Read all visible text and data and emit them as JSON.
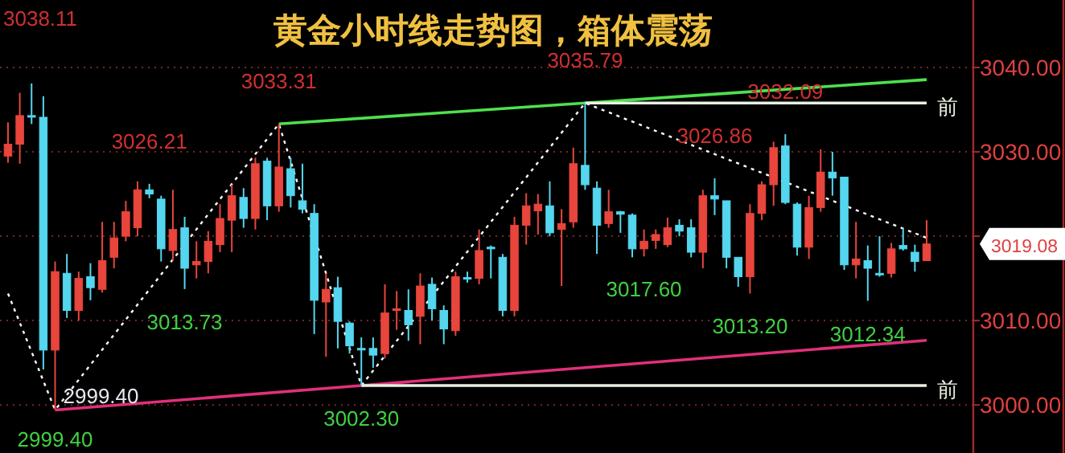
{
  "chart_data": {
    "type": "candlestick",
    "title": "黄金小时线走势图，箱体震荡",
    "categories": [
      null,
      null,
      null,
      null,
      null,
      null,
      null,
      null,
      null,
      null,
      null,
      null,
      null,
      null,
      null,
      null,
      null,
      null,
      null,
      null,
      null,
      null,
      null,
      null,
      null,
      null,
      null,
      null,
      null,
      null,
      null,
      null,
      null,
      null,
      null,
      null,
      null,
      null,
      null,
      null,
      null,
      null,
      null,
      null,
      null,
      null,
      null,
      null,
      null,
      null,
      null,
      null,
      null,
      null,
      null,
      null,
      null,
      null,
      null,
      null,
      null,
      null,
      null,
      null,
      null,
      null,
      null,
      null,
      null,
      null,
      null,
      null,
      null,
      null,
      null,
      null,
      null,
      null,
      null
    ],
    "ohlc": [
      [
        3029.5,
        3033.5,
        3028.7,
        3030.9
      ],
      [
        3030.9,
        3037.0,
        3028.6,
        3034.3
      ],
      [
        3034.3,
        3038.11,
        3033.3,
        3034.2
      ],
      [
        3034.1,
        3036.6,
        3004.2,
        3006.5
      ],
      [
        3006.5,
        3017.0,
        2999.4,
        3015.8
      ],
      [
        3015.6,
        3017.9,
        3010.3,
        3011.2
      ],
      [
        3011.2,
        3015.8,
        3010.0,
        3015.0
      ],
      [
        3015.2,
        3016.8,
        3012.4,
        3013.9
      ],
      [
        3013.7,
        3021.7,
        3013.3,
        3017.1
      ],
      [
        3017.5,
        3021.7,
        3016.2,
        3019.8
      ],
      [
        3020.0,
        3024.2,
        3019.4,
        3022.9
      ],
      [
        3021.0,
        3026.5,
        3020.0,
        3025.5
      ],
      [
        3025.5,
        3026.21,
        3024.5,
        3025.0
      ],
      [
        3024.4,
        3024.8,
        3017.0,
        3018.5
      ],
      [
        3018.3,
        3025.5,
        3017.1,
        3020.8
      ],
      [
        3021.0,
        3022.3,
        3013.73,
        3016.2
      ],
      [
        3016.6,
        3019.4,
        3015.0,
        3017.0
      ],
      [
        3017.0,
        3020.6,
        3015.6,
        3019.4
      ],
      [
        3019.0,
        3023.8,
        3018.1,
        3022.1
      ],
      [
        3021.9,
        3026.1,
        3018.1,
        3024.8
      ],
      [
        3024.6,
        3025.7,
        3021.0,
        3022.1
      ],
      [
        3022.1,
        3029.3,
        3020.8,
        3028.6
      ],
      [
        3028.9,
        3029.3,
        3021.9,
        3023.6
      ],
      [
        3023.6,
        3033.31,
        3022.9,
        3028.2
      ],
      [
        3028.0,
        3029.3,
        3023.4,
        3024.8
      ],
      [
        3024.2,
        3028.6,
        3022.7,
        3023.2
      ],
      [
        3022.7,
        3023.8,
        3008.4,
        3012.4
      ],
      [
        3012.2,
        3015.6,
        3005.7,
        3013.7
      ],
      [
        3013.9,
        3015.2,
        3006.7,
        3009.9
      ],
      [
        3009.7,
        3009.9,
        3006.1,
        3007.0
      ],
      [
        3006.7,
        3008.0,
        3002.3,
        3006.6
      ],
      [
        3006.7,
        3008.0,
        3004.4,
        3005.9
      ],
      [
        3006.1,
        3014.3,
        3005.5,
        3010.9
      ],
      [
        3011.2,
        3013.5,
        3008.9,
        3011.4
      ],
      [
        3011.2,
        3013.7,
        3007.6,
        3009.5
      ],
      [
        3010.5,
        3015.6,
        3007.2,
        3014.1
      ],
      [
        3014.3,
        3015.1,
        3010.0,
        3011.4
      ],
      [
        3011.2,
        3011.8,
        3007.2,
        3009.0
      ],
      [
        3008.8,
        3015.8,
        3008.2,
        3015.2
      ],
      [
        3015.0,
        3015.8,
        3014.5,
        3015.1
      ],
      [
        3015.0,
        3020.8,
        3014.3,
        3018.3
      ],
      [
        3018.7,
        3018.9,
        3015.0,
        3018.5
      ],
      [
        3017.5,
        3017.9,
        3010.5,
        3011.2
      ],
      [
        3011.2,
        3022.3,
        3010.5,
        3021.3
      ],
      [
        3021.3,
        3025.1,
        3019.0,
        3023.6
      ],
      [
        3023.0,
        3025.0,
        3020.2,
        3023.8
      ],
      [
        3023.6,
        3026.5,
        3020.0,
        3020.4
      ],
      [
        3020.8,
        3023.2,
        3014.1,
        3021.5
      ],
      [
        3021.7,
        3030.5,
        3021.0,
        3028.6
      ],
      [
        3028.4,
        3035.79,
        3025.5,
        3026.1
      ],
      [
        3025.7,
        3026.5,
        3017.9,
        3021.3
      ],
      [
        3021.5,
        3025.5,
        3021.0,
        3022.9
      ],
      [
        3022.9,
        3023.0,
        3020.4,
        3022.6
      ],
      [
        3022.5,
        3022.7,
        3017.5,
        3018.5
      ],
      [
        3018.5,
        3020.8,
        3017.6,
        3019.4
      ],
      [
        3019.5,
        3020.8,
        3018.5,
        3020.2
      ],
      [
        3019.0,
        3022.2,
        3018.7,
        3021.0
      ],
      [
        3021.3,
        3022.0,
        3020.0,
        3020.6
      ],
      [
        3021.0,
        3022.0,
        3017.5,
        3018.1
      ],
      [
        3018.1,
        3025.5,
        3016.2,
        3024.8
      ],
      [
        3024.8,
        3026.86,
        3022.5,
        3024.4
      ],
      [
        3024.2,
        3024.2,
        3016.2,
        3017.5
      ],
      [
        3017.5,
        3017.5,
        3014.0,
        3015.2
      ],
      [
        3015.2,
        3023.8,
        3013.2,
        3022.7
      ],
      [
        3022.7,
        3026.5,
        3021.9,
        3026.1
      ],
      [
        3026.1,
        3031.2,
        3023.6,
        3030.5
      ],
      [
        3030.7,
        3032.09,
        3023.8,
        3024.0
      ],
      [
        3023.8,
        3024.0,
        3017.7,
        3018.7
      ],
      [
        3018.7,
        3024.8,
        3017.3,
        3023.4
      ],
      [
        3023.4,
        3030.3,
        3022.9,
        3027.6
      ],
      [
        3027.6,
        3030.0,
        3024.8,
        3026.9
      ],
      [
        3027.0,
        3027.0,
        3016.0,
        3016.6
      ],
      [
        3016.6,
        3021.7,
        3015.0,
        3017.3
      ],
      [
        3017.1,
        3018.9,
        3012.34,
        3016.2
      ],
      [
        3015.6,
        3020.0,
        3015.2,
        3015.5
      ],
      [
        3015.6,
        3019.2,
        3015.1,
        3018.5
      ],
      [
        3018.9,
        3021.0,
        3018.3,
        3018.5
      ],
      [
        3018.1,
        3019.0,
        3015.8,
        3017.0
      ],
      [
        3017.1,
        3021.9,
        3017.1,
        3019.08
      ]
    ],
    "colors": [
      "#e8453c",
      "#e8453c",
      "#54d6ef",
      "#54d6ef",
      "#e8453c",
      "#54d6ef",
      "#e8453c",
      "#54d6ef",
      "#e8453c",
      "#e8453c",
      "#e8453c",
      "#e8453c",
      "#54d6ef",
      "#54d6ef",
      "#e8453c",
      "#54d6ef",
      "#e8453c",
      "#e8453c",
      "#e8453c",
      "#e8453c",
      "#54d6ef",
      "#e8453c",
      "#54d6ef",
      "#e8453c",
      "#54d6ef",
      "#54d6ef",
      "#54d6ef",
      "#e8453c",
      "#54d6ef",
      "#54d6ef",
      "#54d6ef",
      "#54d6ef",
      "#e8453c",
      "#e8453c",
      "#54d6ef",
      "#e8453c",
      "#54d6ef",
      "#54d6ef",
      "#e8453c",
      "#54d6ef",
      "#e8453c",
      "#54d6ef",
      "#54d6ef",
      "#e8453c",
      "#e8453c",
      "#e8453c",
      "#54d6ef",
      "#e8453c",
      "#e8453c",
      "#54d6ef",
      "#54d6ef",
      "#e8453c",
      "#54d6ef",
      "#54d6ef",
      "#e8453c",
      "#e8453c",
      "#e8453c",
      "#54d6ef",
      "#54d6ef",
      "#e8453c",
      "#54d6ef",
      "#54d6ef",
      "#54d6ef",
      "#e8453c",
      "#e8453c",
      "#e8453c",
      "#54d6ef",
      "#54d6ef",
      "#e8453c",
      "#e8453c",
      "#54d6ef",
      "#54d6ef",
      "#e8453c",
      "#54d6ef",
      "#54d6ef",
      "#e8453c",
      "#54d6ef",
      "#54d6ef",
      "#e8453c"
    ],
    "series": [
      {
        "type": "line",
        "color": "#4ee04e",
        "line_style": "solid",
        "values": [
          null,
          null,
          null,
          null,
          null,
          null,
          null,
          null,
          null,
          null,
          null,
          null,
          null,
          null,
          null,
          null,
          null,
          null,
          null,
          null,
          null,
          null,
          null,
          3033.31,
          null,
          null,
          null,
          null,
          null,
          null,
          null,
          null,
          null,
          null,
          null,
          null,
          null,
          null,
          null,
          null,
          null,
          null,
          null,
          null,
          null,
          null,
          null,
          null,
          null,
          3035.79,
          null,
          null,
          null,
          null,
          null,
          null,
          null,
          null,
          null,
          null,
          null,
          null,
          null,
          null,
          null,
          null,
          null,
          null,
          null,
          null,
          null,
          null,
          null,
          null,
          null,
          null,
          null,
          null,
          3038.56
        ]
      },
      {
        "type": "line",
        "color": "#e0307a",
        "line_style": "solid",
        "values": [
          null,
          null,
          null,
          null,
          2999.4,
          null,
          null,
          null,
          null,
          null,
          null,
          null,
          null,
          null,
          null,
          null,
          null,
          null,
          null,
          null,
          null,
          null,
          null,
          null,
          null,
          null,
          null,
          null,
          null,
          null,
          3002.3,
          null,
          null,
          null,
          null,
          null,
          null,
          null,
          null,
          null,
          null,
          null,
          null,
          null,
          null,
          null,
          null,
          null,
          null,
          null,
          null,
          null,
          null,
          null,
          null,
          null,
          null,
          null,
          null,
          null,
          null,
          null,
          null,
          null,
          null,
          null,
          null,
          null,
          null,
          null,
          null,
          null,
          null,
          null,
          null,
          null,
          null,
          null,
          3007.65
        ]
      },
      {
        "type": "line",
        "color": "#ffffff",
        "line_style": "dotted",
        "values": [
          3013.2,
          null,
          null,
          null,
          2999.4,
          null,
          null,
          null,
          null,
          null,
          null,
          null,
          null,
          null,
          null,
          null,
          null,
          null,
          null,
          null,
          null,
          null,
          null,
          3033.31,
          null,
          null,
          null,
          null,
          null,
          null,
          3002.3,
          null,
          null,
          null,
          null,
          null,
          null,
          null,
          null,
          null,
          null,
          null,
          null,
          null,
          null,
          null,
          null,
          null,
          null,
          3035.79,
          null,
          null,
          null,
          null,
          null,
          null,
          null,
          null,
          null,
          null,
          null,
          null,
          null,
          null,
          null,
          null,
          null,
          null,
          null,
          null,
          null,
          null,
          null,
          null,
          null,
          null,
          null,
          null,
          3019.8
        ]
      },
      {
        "type": "line",
        "color": "#e8f0e0",
        "line_style": "solid",
        "values": [
          null,
          null,
          null,
          null,
          null,
          null,
          null,
          null,
          null,
          null,
          null,
          null,
          null,
          null,
          null,
          null,
          null,
          null,
          null,
          null,
          null,
          null,
          null,
          null,
          null,
          null,
          null,
          null,
          null,
          null,
          null,
          null,
          null,
          null,
          null,
          null,
          null,
          null,
          null,
          null,
          null,
          null,
          null,
          null,
          null,
          null,
          null,
          null,
          null,
          3035.79,
          null,
          null,
          null,
          null,
          null,
          null,
          null,
          null,
          null,
          null,
          null,
          null,
          null,
          null,
          null,
          null,
          null,
          null,
          null,
          null,
          null,
          null,
          null,
          null,
          null,
          null,
          null,
          null,
          3035.79
        ]
      },
      {
        "type": "line",
        "color": "#e8f0e0",
        "line_style": "solid",
        "values": [
          null,
          null,
          null,
          null,
          null,
          null,
          null,
          null,
          null,
          null,
          null,
          null,
          null,
          null,
          null,
          null,
          null,
          null,
          null,
          null,
          null,
          null,
          null,
          null,
          null,
          null,
          null,
          null,
          null,
          null,
          3002.3,
          null,
          null,
          null,
          null,
          null,
          null,
          null,
          null,
          null,
          null,
          null,
          null,
          null,
          null,
          null,
          null,
          null,
          null,
          null,
          null,
          null,
          null,
          null,
          null,
          null,
          null,
          null,
          null,
          null,
          null,
          null,
          null,
          null,
          null,
          null,
          null,
          null,
          null,
          null,
          null,
          null,
          null,
          null,
          null,
          null,
          null,
          null,
          3002.3
        ]
      }
    ],
    "annotations": [
      "3038.11",
      {
        "text": "3026.21",
        "y": 3026.21
      },
      {
        "text": "3033.31",
        "y": 3033.31
      },
      {
        "text": "3035.79",
        "y": 3035.79
      },
      {
        "text": "3026.86",
        "y": 3026.86
      },
      {
        "text": "3032.09",
        "y": 3032.09
      },
      {
        "text": "2999.40",
        "y": 2999.4
      },
      {
        "text": "2999.40",
        "y": 2999.4
      },
      {
        "text": "3013.73",
        "y": 3013.73
      },
      {
        "text": "3002.30",
        "y": 3002.3
      },
      {
        "text": "3017.60",
        "y": 3017.6
      },
      {
        "text": "3013.20",
        "y": 3013.2
      },
      {
        "text": "3012.34",
        "y": 3012.34
      },
      "前",
      "前",
      "3019.08"
    ],
    "ylim": [
      2994.3,
      3048
    ],
    "yticks": [
      {
        "value": 3000,
        "label": "3000.00"
      },
      {
        "value": 3010,
        "label": "3010.00"
      },
      {
        "value": 3020,
        "label": null
      },
      {
        "value": 3030,
        "label": "3030.00"
      },
      {
        "value": 3040,
        "label": "3040.00"
      }
    ],
    "grid": "y",
    "tick_labels": "y"
  }
}
